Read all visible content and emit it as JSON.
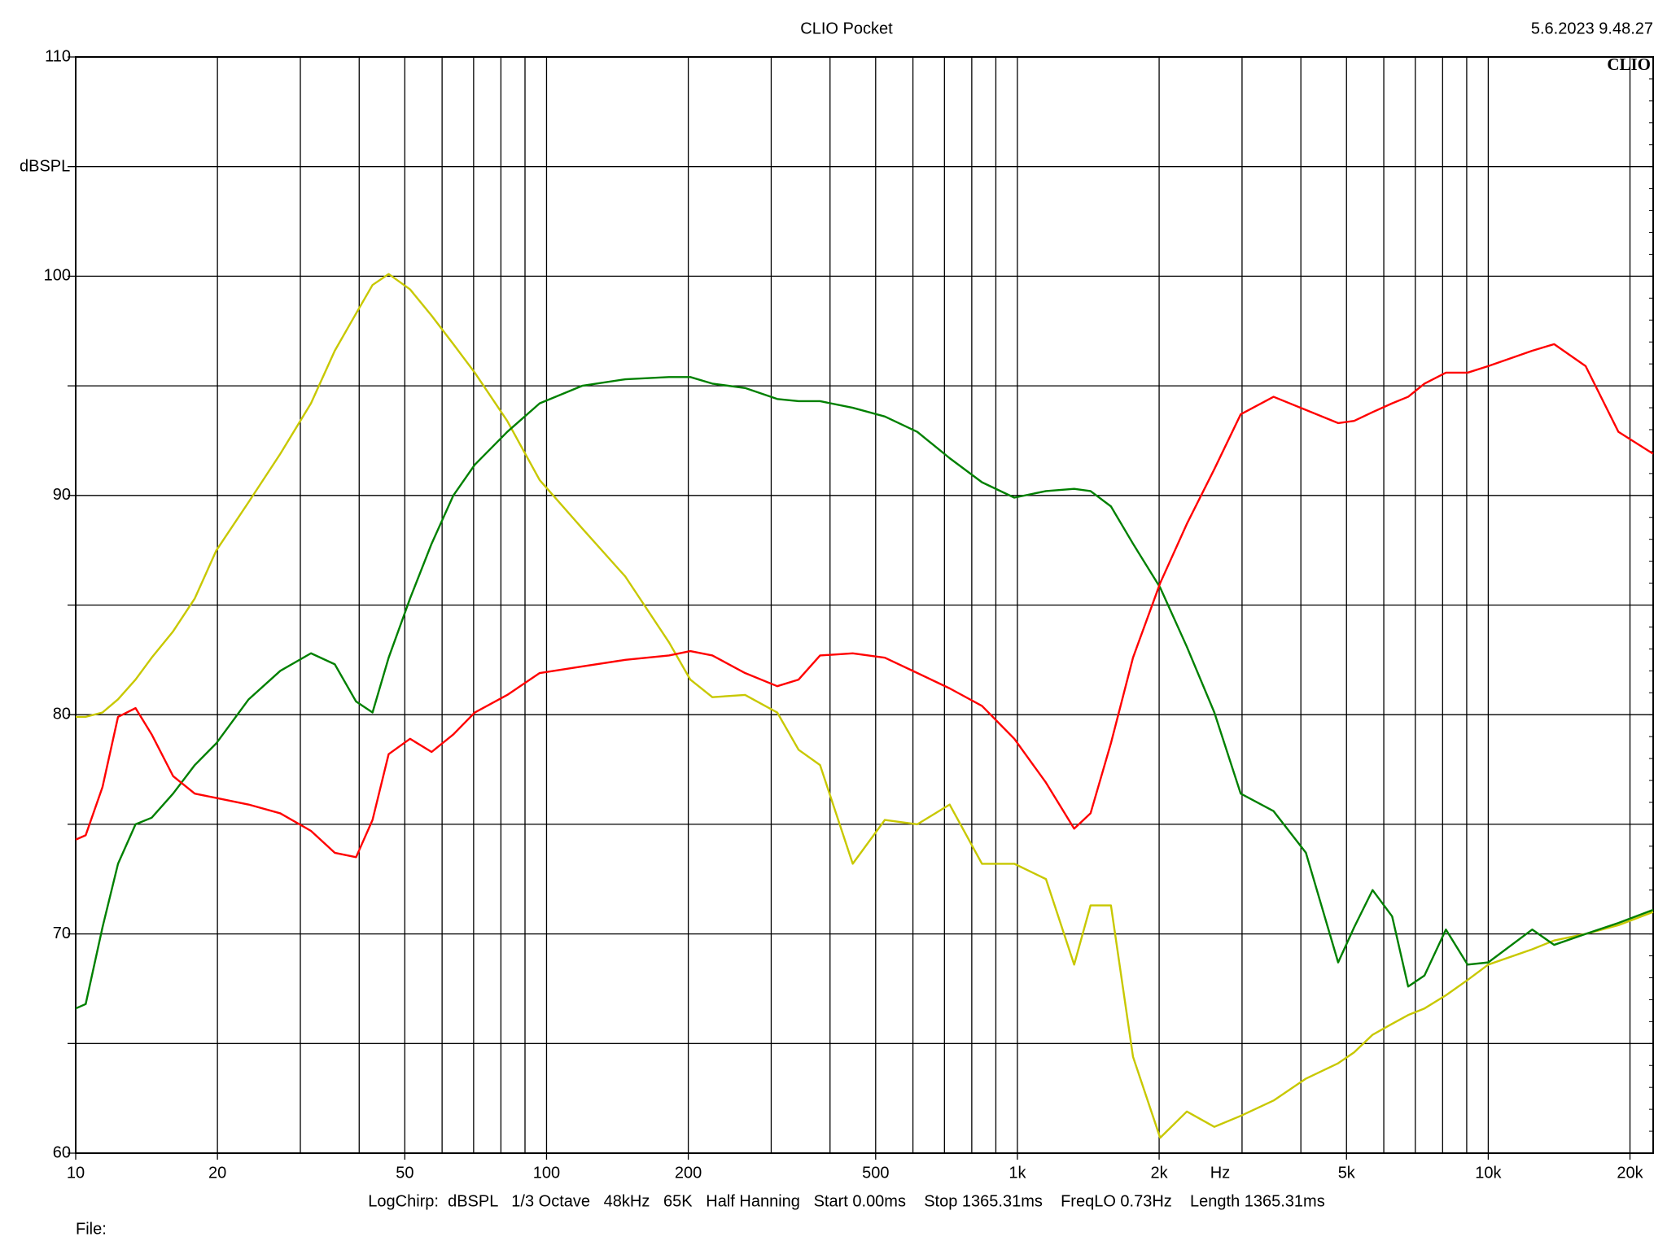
{
  "chart_data": {
    "type": "line",
    "title": "CLIO Pocket",
    "timestamp": "5.6.2023 9.48.27",
    "logo": "CLIO",
    "y_label": "dBSPL",
    "x_unit": "Hz",
    "settings_line": "LogChirp:  dBSPL   1/3 Octave   48kHz   65K   Half Hanning   Start 0.00ms    Stop 1365.31ms    FreqLO 0.73Hz    Length 1365.31ms",
    "file_label": "File:",
    "x_scale": "log",
    "grid": true,
    "xlim": [
      10,
      22400
    ],
    "ylim": [
      60,
      110
    ],
    "xticks": [
      10,
      20,
      50,
      100,
      200,
      500,
      {
        "value": 1000,
        "label": "1k"
      },
      {
        "value": 2000,
        "label": "2k"
      },
      {
        "value": 5000,
        "label": "5k"
      },
      {
        "value": 10000,
        "label": "10k"
      },
      {
        "value": 20000,
        "label": "20k"
      }
    ],
    "xgrid": [
      20,
      30,
      40,
      50,
      60,
      70,
      80,
      90,
      100,
      200,
      300,
      400,
      500,
      600,
      700,
      800,
      900,
      1000,
      2000,
      3000,
      4000,
      5000,
      6000,
      7000,
      8000,
      9000,
      10000,
      20000
    ],
    "yticks": [
      60,
      70,
      80,
      90,
      100,
      110
    ],
    "ygrid": [
      65,
      75,
      85,
      95,
      105
    ],
    "x": [
      10,
      10.5,
      11.4,
      12.3,
      13.4,
      14.5,
      16.1,
      17.9,
      19.9,
      23.3,
      27.2,
      31.6,
      35.5,
      39.4,
      42.7,
      46.2,
      51.3,
      57,
      63.4,
      70.4,
      82.5,
      96.7,
      119,
      147,
      182,
      202,
      225,
      264,
      309,
      343,
      381,
      447,
      523,
      613,
      718,
      841,
      985,
      1150,
      1320,
      1430,
      1580,
      1760,
      2010,
      2290,
      2620,
      2980,
      3500,
      4100,
      4800,
      5190,
      5680,
      6250,
      6760,
      7320,
      8130,
      9040,
      10000,
      12400,
      13800,
      16100,
      18900,
      22400
    ],
    "series": [
      {
        "color": "#c8c800",
        "values": [
          79.9,
          79.9,
          80.1,
          80.7,
          81.6,
          82.6,
          83.8,
          85.3,
          87.5,
          89.7,
          91.9,
          94.2,
          96.6,
          98.3,
          99.6,
          100.1,
          99.4,
          98.2,
          96.9,
          95.6,
          93.4,
          90.7,
          88.5,
          86.3,
          83.3,
          81.6,
          80.8,
          80.9,
          80.1,
          78.4,
          77.7,
          73.2,
          75.2,
          75.0,
          75.9,
          73.2,
          73.2,
          72.5,
          68.6,
          71.3,
          71.3,
          64.4,
          60.7,
          61.9,
          61.2,
          61.7,
          62.4,
          63.4,
          64.1,
          64.6,
          65.4,
          65.9,
          66.3,
          66.6,
          67.2,
          67.9,
          68.6,
          69.3,
          69.7,
          70.0,
          70.4,
          71.0
        ]
      },
      {
        "color": "#008000",
        "values": [
          66.6,
          66.8,
          70.3,
          73.2,
          75.0,
          75.3,
          76.4,
          77.7,
          78.7,
          80.7,
          82.0,
          82.8,
          82.3,
          80.6,
          80.1,
          82.6,
          85.3,
          87.8,
          90.0,
          91.4,
          92.9,
          94.2,
          95.0,
          95.3,
          95.4,
          95.4,
          95.1,
          94.9,
          94.4,
          94.3,
          94.3,
          94.0,
          93.6,
          92.9,
          91.7,
          90.6,
          89.9,
          90.2,
          90.3,
          90.2,
          89.5,
          87.8,
          85.8,
          83.1,
          80.1,
          76.4,
          75.6,
          73.7,
          68.7,
          70.3,
          72.0,
          70.8,
          67.6,
          68.1,
          70.2,
          68.6,
          68.7,
          70.2,
          69.5,
          70.0,
          70.5,
          71.1
        ]
      },
      {
        "color": "#ff0000",
        "values": [
          74.3,
          74.5,
          76.7,
          79.9,
          80.3,
          79.1,
          77.2,
          76.4,
          76.2,
          75.9,
          75.5,
          74.7,
          73.7,
          73.5,
          75.2,
          78.2,
          78.9,
          78.3,
          79.1,
          80.1,
          80.9,
          81.9,
          82.2,
          82.5,
          82.7,
          82.9,
          82.7,
          81.9,
          81.3,
          81.6,
          82.7,
          82.8,
          82.6,
          81.9,
          81.2,
          80.4,
          78.9,
          76.9,
          74.8,
          75.5,
          78.7,
          82.6,
          86.0,
          88.7,
          91.2,
          93.7,
          94.5,
          93.9,
          93.3,
          93.4,
          93.8,
          94.2,
          94.5,
          95.1,
          95.6,
          95.6,
          95.9,
          96.6,
          96.9,
          95.9,
          92.9,
          91.9
        ]
      }
    ]
  }
}
